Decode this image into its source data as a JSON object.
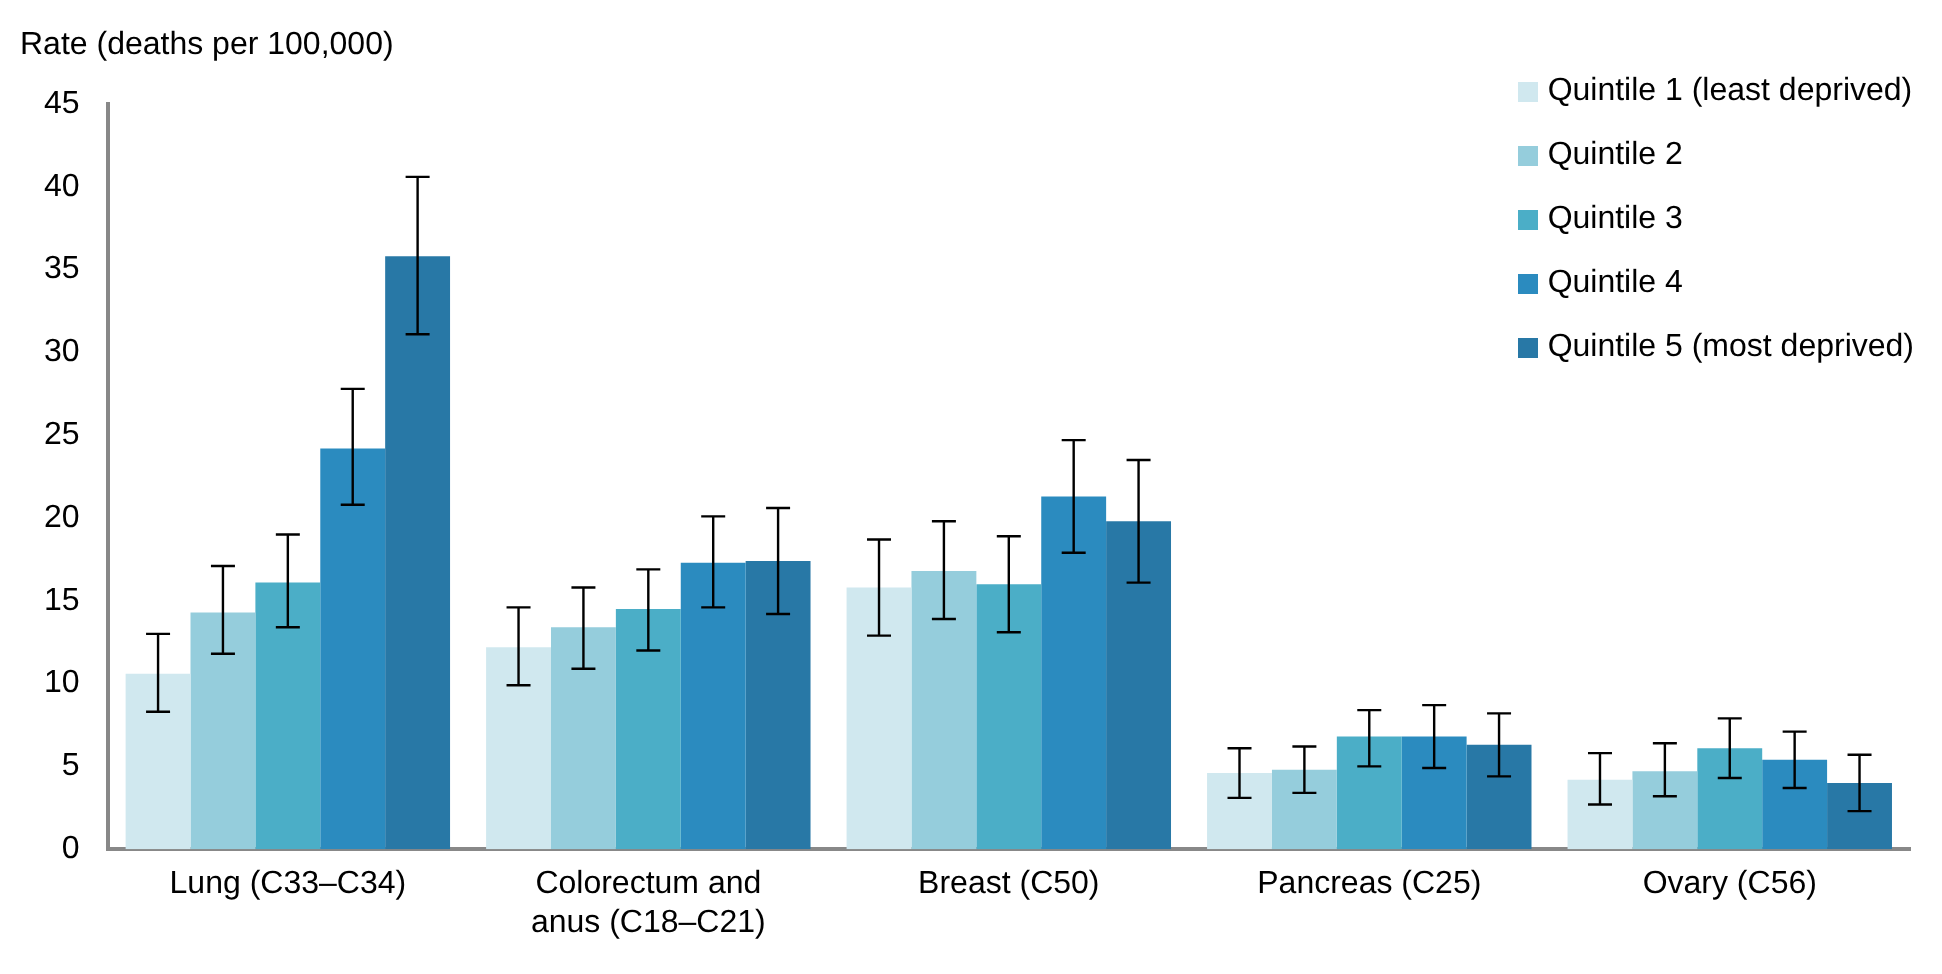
{
  "chart_data": {
    "type": "bar",
    "ylabel": "Rate (deaths per 100,000)",
    "categories": [
      "Lung (C33–C34)",
      "Colorectum and anus (C18–C21)",
      "Breast (C50)",
      "Pancreas (C25)",
      "Ovary (C56)"
    ],
    "series": [
      {
        "name": "Quintile 1 (least deprived)",
        "color": "#d0e8ef",
        "values": [
          10.6,
          12.2,
          15.8,
          4.6,
          4.2
        ],
        "errors": [
          [
            8.3,
            13.0
          ],
          [
            9.9,
            14.6
          ],
          [
            12.9,
            18.7
          ],
          [
            3.1,
            6.1
          ],
          [
            2.7,
            5.8
          ]
        ]
      },
      {
        "name": "Quintile 2",
        "color": "#95cddc",
        "values": [
          14.3,
          13.4,
          16.8,
          4.8,
          4.7
        ],
        "errors": [
          [
            11.8,
            17.1
          ],
          [
            10.9,
            15.8
          ],
          [
            13.9,
            19.8
          ],
          [
            3.4,
            6.2
          ],
          [
            3.2,
            6.4
          ]
        ]
      },
      {
        "name": "Quintile 3",
        "color": "#4baec7",
        "values": [
          16.1,
          14.5,
          16.0,
          6.8,
          6.1
        ],
        "errors": [
          [
            13.4,
            19.0
          ],
          [
            12.0,
            16.9
          ],
          [
            13.1,
            18.9
          ],
          [
            5.0,
            8.4
          ],
          [
            4.3,
            7.9
          ]
        ]
      },
      {
        "name": "Quintile 4",
        "color": "#2b8bbf",
        "values": [
          24.2,
          17.3,
          21.3,
          6.8,
          5.4
        ],
        "errors": [
          [
            20.8,
            27.8
          ],
          [
            14.6,
            20.1
          ],
          [
            17.9,
            24.7
          ],
          [
            4.9,
            8.7
          ],
          [
            3.7,
            7.1
          ]
        ]
      },
      {
        "name": "Quintile 5 (most deprived)",
        "color": "#2878a6",
        "values": [
          35.8,
          17.4,
          19.8,
          6.3,
          4.0
        ],
        "errors": [
          [
            31.1,
            40.6
          ],
          [
            14.2,
            20.6
          ],
          [
            16.1,
            23.5
          ],
          [
            4.4,
            8.2
          ],
          [
            2.3,
            5.7
          ]
        ]
      }
    ],
    "ylim": [
      0,
      45
    ],
    "yticks": [
      0,
      5,
      10,
      15,
      20,
      25,
      30,
      35,
      40,
      45
    ],
    "grid": false,
    "legend": "top right"
  }
}
